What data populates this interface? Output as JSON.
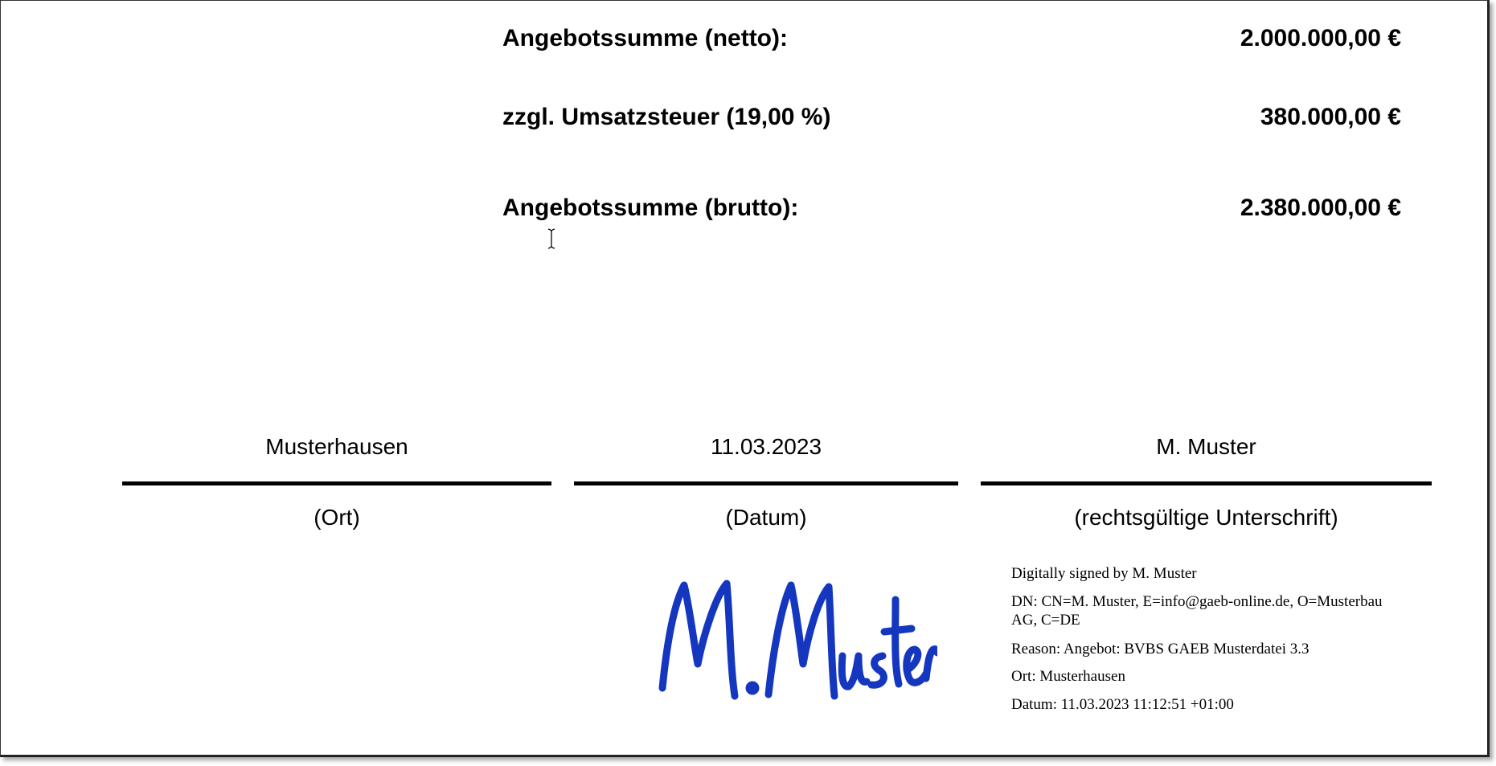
{
  "totals": [
    {
      "label": "Angebotssumme (netto):",
      "amount": "2.000.000,00 €"
    },
    {
      "label": "zzgl. Umsatzsteuer (19,00 %)",
      "amount": "380.000,00 €"
    },
    {
      "label": "Angebotssumme (brutto):",
      "amount": "2.380.000,00 €"
    }
  ],
  "signature_block": {
    "place_value": "Musterhausen",
    "place_caption": "(Ort)",
    "date_value": "11.03.2023",
    "date_caption": "(Datum)",
    "signer_value": "M. Muster",
    "signer_caption": "(rechtsgültige Unterschrift)"
  },
  "handwritten_signature": "M. Muster",
  "signature_color": "#1537c0",
  "digital_signature": {
    "signed_by": "Digitally signed by M. Muster",
    "dn_line1": "DN: CN=M. Muster, E=info@gaeb-online.de, O=Musterbau",
    "dn_line2": "AG, C=DE",
    "reason": "Reason: Angebot: BVBS GAEB Musterdatei 3.3",
    "location": "Ort: Musterhausen",
    "date": "Datum: 11.03.2023 11:12:51 +01:00"
  }
}
